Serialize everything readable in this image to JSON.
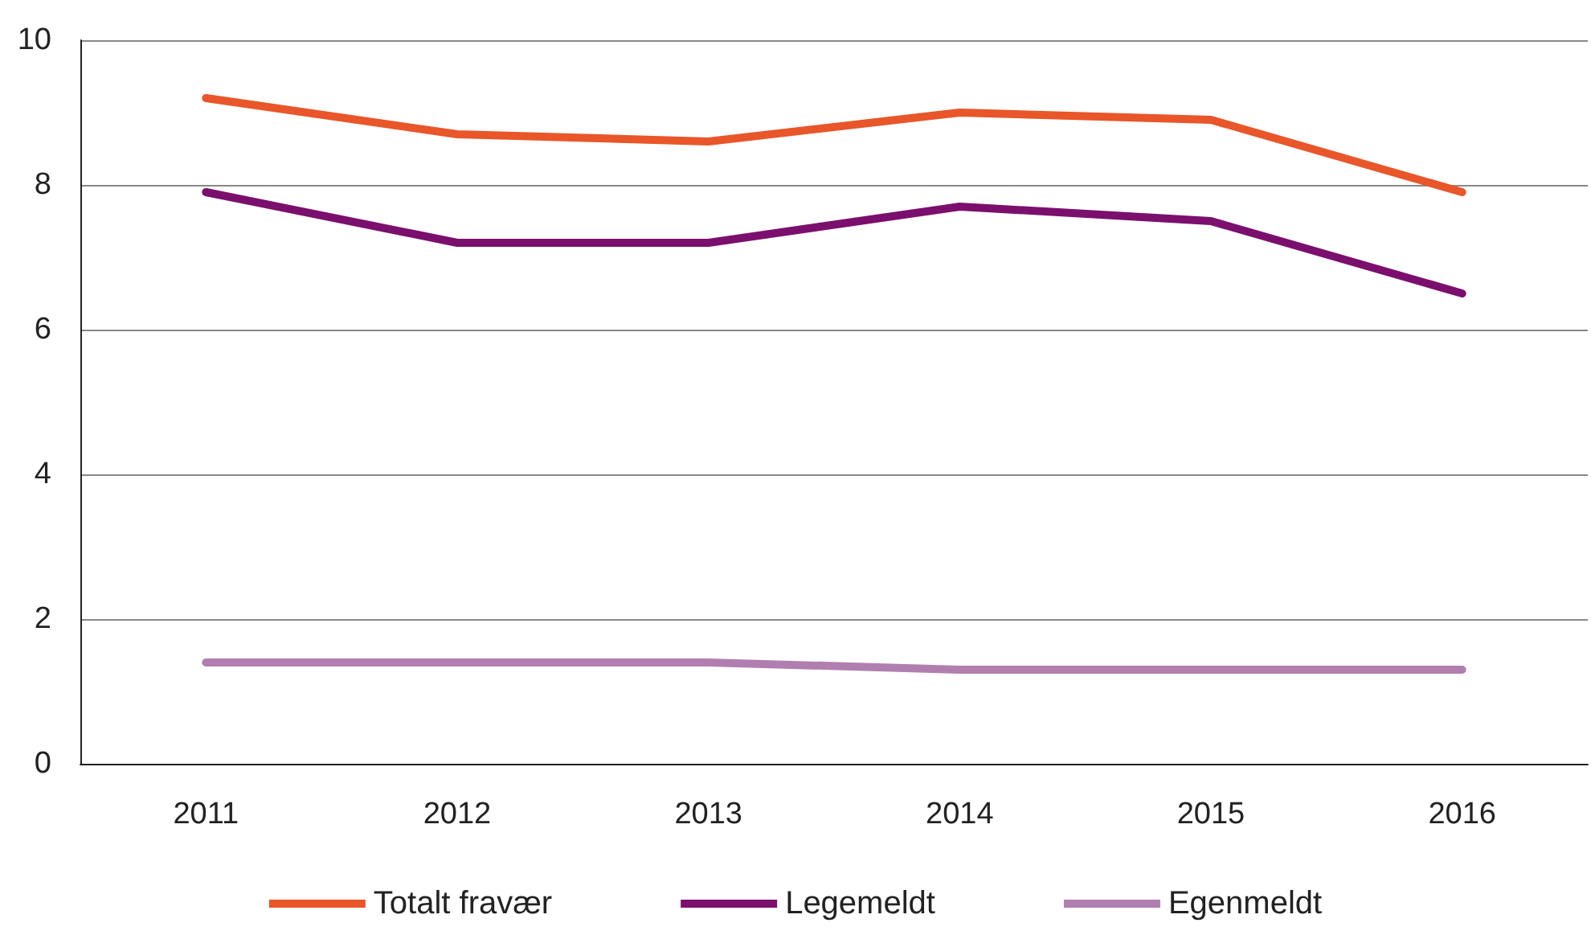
{
  "chart_data": {
    "type": "line",
    "categories": [
      "2011",
      "2012",
      "2013",
      "2014",
      "2015",
      "2016"
    ],
    "series": [
      {
        "name": "Totalt fravær",
        "color": "#e8562a",
        "values": [
          9.2,
          8.7,
          8.6,
          9.0,
          8.9,
          7.9
        ]
      },
      {
        "name": "Legemeldt",
        "color": "#7b0f6e",
        "values": [
          7.9,
          7.2,
          7.2,
          7.7,
          7.5,
          6.5
        ]
      },
      {
        "name": "Egenmeldt",
        "color": "#b07fb0",
        "values": [
          1.4,
          1.4,
          1.4,
          1.3,
          1.3,
          1.3
        ]
      }
    ],
    "ylim": [
      0,
      10
    ],
    "yticks": [
      0,
      2,
      4,
      6,
      8,
      10
    ],
    "grid": "y",
    "legend": "bottom",
    "marker": "none",
    "line_style": "solid"
  }
}
